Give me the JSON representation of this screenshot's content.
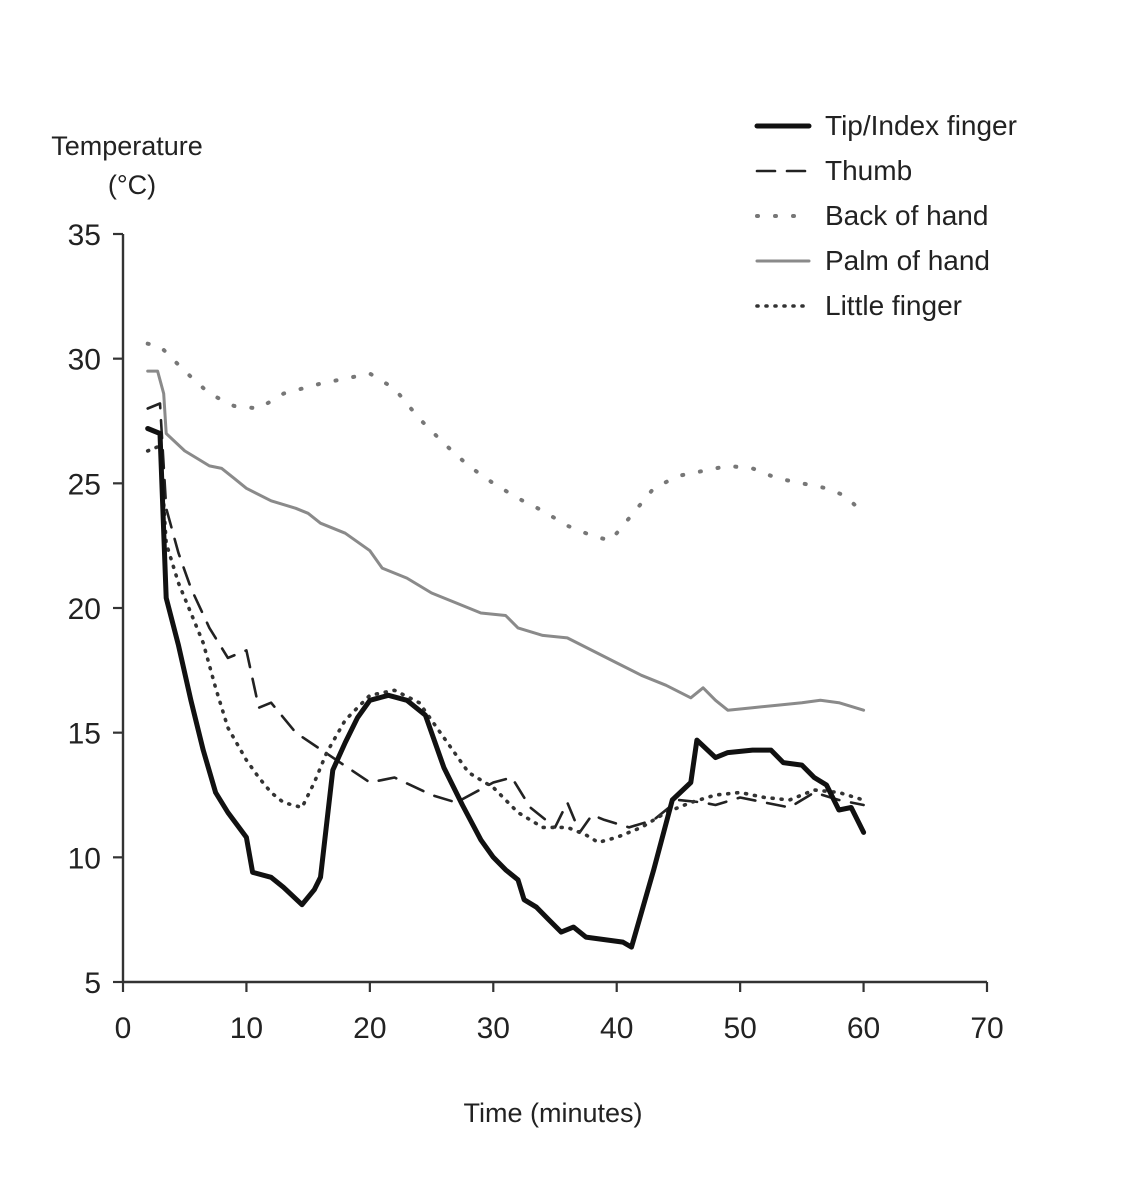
{
  "chart_data": {
    "type": "line",
    "title": "",
    "ylabel_line1": "Temperature",
    "ylabel_line2": "(°C)",
    "xlabel": "Time (minutes)",
    "xlim": [
      0,
      70
    ],
    "ylim": [
      5,
      35
    ],
    "xticks": [
      "0",
      "10",
      "20",
      "30",
      "40",
      "50",
      "60",
      "70"
    ],
    "yticks": [
      "5",
      "10",
      "15",
      "20",
      "25",
      "30",
      "35"
    ],
    "grid": false,
    "legend_position": "top-right",
    "series": [
      {
        "name": "Tip/Index finger",
        "color": "#111111",
        "style": "solid-thick",
        "points": [
          [
            2,
            27.2
          ],
          [
            3,
            27
          ],
          [
            3.5,
            20.4
          ],
          [
            4.5,
            18.5
          ],
          [
            5.5,
            16.3
          ],
          [
            6.5,
            14.3
          ],
          [
            7.5,
            12.6
          ],
          [
            8.5,
            11.8
          ],
          [
            10,
            10.8
          ],
          [
            10.5,
            9.4
          ],
          [
            12,
            9.2
          ],
          [
            13,
            8.8
          ],
          [
            14.5,
            8.1
          ],
          [
            15.5,
            8.7
          ],
          [
            16,
            9.2
          ],
          [
            17,
            13.5
          ],
          [
            18,
            14.6
          ],
          [
            19,
            15.6
          ],
          [
            20,
            16.3
          ],
          [
            21.5,
            16.5
          ],
          [
            23,
            16.3
          ],
          [
            24.5,
            15.7
          ],
          [
            26,
            13.6
          ],
          [
            27.5,
            12.1
          ],
          [
            29,
            10.7
          ],
          [
            30,
            10
          ],
          [
            31,
            9.5
          ],
          [
            32,
            9.1
          ],
          [
            32.5,
            8.3
          ],
          [
            33.5,
            8
          ],
          [
            34.5,
            7.5
          ],
          [
            35.5,
            7
          ],
          [
            36.5,
            7.2
          ],
          [
            37.5,
            6.8
          ],
          [
            39,
            6.7
          ],
          [
            40.5,
            6.6
          ],
          [
            41.2,
            6.4
          ],
          [
            43,
            9.5
          ],
          [
            44.5,
            12.3
          ],
          [
            46,
            13
          ],
          [
            46.5,
            14.7
          ],
          [
            48,
            14
          ],
          [
            49,
            14.2
          ],
          [
            51,
            14.3
          ],
          [
            52.5,
            14.3
          ],
          [
            53.5,
            13.8
          ],
          [
            55,
            13.7
          ],
          [
            56,
            13.2
          ],
          [
            57,
            12.9
          ],
          [
            58,
            11.9
          ],
          [
            59,
            12
          ],
          [
            60,
            11
          ]
        ]
      },
      {
        "name": "Thumb",
        "color": "#222222",
        "style": "dashed",
        "points": [
          [
            2,
            28
          ],
          [
            3,
            28.2
          ],
          [
            3.5,
            24
          ],
          [
            4.5,
            22.2
          ],
          [
            5.5,
            20.8
          ],
          [
            7,
            19.2
          ],
          [
            8.5,
            18
          ],
          [
            10,
            18.3
          ],
          [
            11,
            16
          ],
          [
            12,
            16.2
          ],
          [
            14,
            15
          ],
          [
            17,
            14
          ],
          [
            20,
            13
          ],
          [
            22,
            13.2
          ],
          [
            25,
            12.5
          ],
          [
            27,
            12.2
          ],
          [
            30,
            13
          ],
          [
            31.5,
            13.2
          ],
          [
            33,
            12
          ],
          [
            35,
            11.2
          ],
          [
            36,
            12.2
          ],
          [
            37,
            11
          ],
          [
            38,
            11.7
          ],
          [
            39,
            11.5
          ],
          [
            41,
            11.2
          ],
          [
            43,
            11.5
          ],
          [
            45,
            12.3
          ],
          [
            47,
            12.2
          ],
          [
            48,
            12.1
          ],
          [
            50,
            12.4
          ],
          [
            52,
            12.2
          ],
          [
            54,
            12
          ],
          [
            56,
            12.6
          ],
          [
            58,
            12.3
          ],
          [
            60,
            12.1
          ]
        ]
      },
      {
        "name": "Back of hand",
        "color": "#777777",
        "style": "dotted-wide",
        "points": [
          [
            2,
            30.6
          ],
          [
            3,
            30.5
          ],
          [
            5,
            29.5
          ],
          [
            7,
            28.6
          ],
          [
            9,
            28.1
          ],
          [
            11,
            28
          ],
          [
            13,
            28.6
          ],
          [
            16,
            29
          ],
          [
            18,
            29.2
          ],
          [
            20,
            29.4
          ],
          [
            22,
            28.8
          ],
          [
            24,
            27.6
          ],
          [
            26,
            26.6
          ],
          [
            28,
            25.7
          ],
          [
            30,
            25
          ],
          [
            32,
            24.4
          ],
          [
            34,
            23.9
          ],
          [
            36,
            23.3
          ],
          [
            38,
            22.9
          ],
          [
            39.5,
            22.7
          ],
          [
            41,
            23.6
          ],
          [
            43,
            24.8
          ],
          [
            45,
            25.3
          ],
          [
            47,
            25.5
          ],
          [
            49,
            25.7
          ],
          [
            51,
            25.6
          ],
          [
            53,
            25.2
          ],
          [
            55,
            25
          ],
          [
            57,
            24.8
          ],
          [
            58.5,
            24.5
          ],
          [
            60,
            23.8
          ]
        ]
      },
      {
        "name": "Palm of hand",
        "color": "#8a8a8a",
        "style": "solid-gray",
        "points": [
          [
            2,
            29.5
          ],
          [
            2.8,
            29.5
          ],
          [
            3.3,
            28.6
          ],
          [
            3.5,
            27
          ],
          [
            5,
            26.3
          ],
          [
            6,
            26
          ],
          [
            7,
            25.7
          ],
          [
            8,
            25.6
          ],
          [
            9,
            25.2
          ],
          [
            10,
            24.8
          ],
          [
            12,
            24.3
          ],
          [
            14,
            24
          ],
          [
            15,
            23.8
          ],
          [
            16,
            23.4
          ],
          [
            18,
            23
          ],
          [
            20,
            22.3
          ],
          [
            21,
            21.6
          ],
          [
            23,
            21.2
          ],
          [
            25,
            20.6
          ],
          [
            27,
            20.2
          ],
          [
            29,
            19.8
          ],
          [
            31,
            19.7
          ],
          [
            32,
            19.2
          ],
          [
            34,
            18.9
          ],
          [
            36,
            18.8
          ],
          [
            38,
            18.3
          ],
          [
            40,
            17.8
          ],
          [
            42,
            17.3
          ],
          [
            44,
            16.9
          ],
          [
            46,
            16.4
          ],
          [
            47,
            16.8
          ],
          [
            48,
            16.3
          ],
          [
            49,
            15.9
          ],
          [
            51,
            16
          ],
          [
            53,
            16.1
          ],
          [
            55,
            16.2
          ],
          [
            56.5,
            16.3
          ],
          [
            58,
            16.2
          ],
          [
            60,
            15.9
          ]
        ]
      },
      {
        "name": "Little finger",
        "color": "#333333",
        "style": "dotted-tight",
        "points": [
          [
            2,
            26.3
          ],
          [
            3,
            26.5
          ],
          [
            3.5,
            22.6
          ],
          [
            4.5,
            21
          ],
          [
            5.5,
            19.8
          ],
          [
            6.5,
            18.6
          ],
          [
            7.5,
            16.8
          ],
          [
            8.5,
            15.2
          ],
          [
            10,
            13.9
          ],
          [
            11,
            13.2
          ],
          [
            12,
            12.6
          ],
          [
            13,
            12.2
          ],
          [
            14.5,
            12
          ],
          [
            15.5,
            13
          ],
          [
            16.5,
            14.2
          ],
          [
            18,
            15.5
          ],
          [
            19,
            16
          ],
          [
            20,
            16.5
          ],
          [
            22,
            16.7
          ],
          [
            24,
            16.2
          ],
          [
            26,
            14.8
          ],
          [
            28,
            13.4
          ],
          [
            30,
            12.8
          ],
          [
            32,
            11.8
          ],
          [
            34,
            11.2
          ],
          [
            36,
            11.2
          ],
          [
            37.5,
            10.9
          ],
          [
            38.5,
            10.6
          ],
          [
            40,
            10.8
          ],
          [
            42,
            11.2
          ],
          [
            44,
            11.8
          ],
          [
            46,
            12.2
          ],
          [
            48,
            12.5
          ],
          [
            50,
            12.6
          ],
          [
            52,
            12.4
          ],
          [
            54,
            12.3
          ],
          [
            56,
            12.7
          ],
          [
            58,
            12.6
          ],
          [
            60,
            12.3
          ]
        ]
      }
    ]
  }
}
